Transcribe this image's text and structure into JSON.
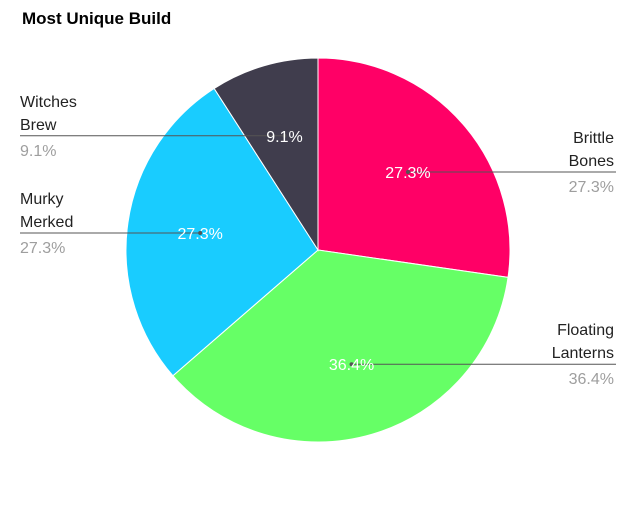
{
  "chart_data": {
    "type": "pie",
    "title": "Most Unique Build",
    "slices": [
      {
        "label_lines": [
          "Brittle",
          "Bones"
        ],
        "value": 27.3,
        "pct_label": "27.3%",
        "color": "#ff0066",
        "label_side": "right"
      },
      {
        "label_lines": [
          "Floating",
          "Lanterns"
        ],
        "value": 36.4,
        "pct_label": "36.4%",
        "color": "#66ff66",
        "label_side": "right"
      },
      {
        "label_lines": [
          "Murky",
          "Merked"
        ],
        "value": 27.3,
        "pct_label": "27.3%",
        "color": "#19ccff",
        "label_side": "left"
      },
      {
        "label_lines": [
          "Witches",
          "Brew"
        ],
        "value": 9.1,
        "pct_label": "9.1%",
        "color": "#403d4d",
        "label_side": "left"
      }
    ]
  }
}
